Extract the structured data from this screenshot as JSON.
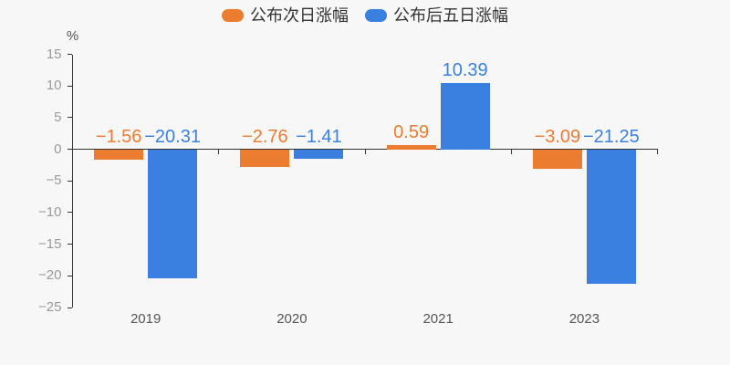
{
  "chart_data": {
    "type": "bar",
    "title": "",
    "ylabel": "%",
    "xlabel": "",
    "categories": [
      "2019",
      "2020",
      "2021",
      "2023"
    ],
    "series": [
      {
        "name": "公布次日涨幅",
        "color": "#ec7c30",
        "values": [
          -1.56,
          -2.76,
          0.59,
          -3.09
        ],
        "labels": [
          "−1.56",
          "−2.76",
          "0.59",
          "−3.09"
        ]
      },
      {
        "name": "公布后五日涨幅",
        "color": "#3a80e1",
        "values": [
          -20.31,
          -1.41,
          10.39,
          -21.25
        ],
        "labels": [
          "−20.31",
          "−1.41",
          "10.39",
          "−21.25"
        ]
      }
    ],
    "ylim": [
      -25,
      15
    ],
    "ytick_step": 5,
    "yticks": [
      15,
      10,
      5,
      0,
      -5,
      -10,
      -15,
      -20,
      -25
    ],
    "ytick_labels": [
      "15",
      "10",
      "5",
      "0",
      "−5",
      "−10",
      "−15",
      "−20",
      "−25"
    ],
    "grid": false,
    "legend_position": "top"
  },
  "colors": {
    "background": "#f7f7f8",
    "axis": "#333333",
    "ytick_text": "#999999",
    "xtick_text": "#555555",
    "legend_text": "#333333",
    "series_next_day": "#ec7c30",
    "series_five_day": "#3a80e1"
  }
}
